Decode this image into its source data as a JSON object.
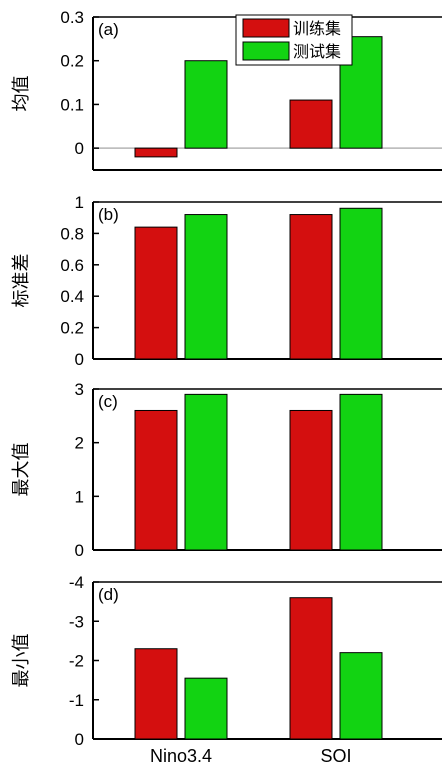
{
  "chart_data": [
    {
      "type": "bar",
      "panel_label": "(a)",
      "ylabel": "均值",
      "categories": [
        "Nino3.4",
        "SOI"
      ],
      "series": [
        {
          "name": "训练集",
          "values": [
            -0.02,
            0.11
          ]
        },
        {
          "name": "测试集",
          "values": [
            0.2,
            0.255
          ]
        }
      ],
      "ylim": [
        -0.05,
        0.3
      ],
      "yticks": [
        0,
        0.1,
        0.2,
        0.3
      ],
      "ytick_labels": [
        "0",
        "0.1",
        "0.2",
        "0.3"
      ],
      "zero_line": true,
      "legend": "top-center"
    },
    {
      "type": "bar",
      "panel_label": "(b)",
      "ylabel": "标准差",
      "categories": [
        "Nino3.4",
        "SOI"
      ],
      "series": [
        {
          "name": "训练集",
          "values": [
            0.84,
            0.92
          ]
        },
        {
          "name": "测试集",
          "values": [
            0.92,
            0.96
          ]
        }
      ],
      "ylim": [
        0,
        1
      ],
      "yticks": [
        0,
        0.2,
        0.4,
        0.6,
        0.8,
        1
      ],
      "ytick_labels": [
        "0",
        "0.2",
        "0.4",
        "0.6",
        "0.8",
        "1"
      ]
    },
    {
      "type": "bar",
      "panel_label": "(c)",
      "ylabel": "最大值",
      "categories": [
        "Nino3.4",
        "SOI"
      ],
      "series": [
        {
          "name": "训练集",
          "values": [
            2.6,
            2.6
          ]
        },
        {
          "name": "测试集",
          "values": [
            2.9,
            2.9
          ]
        }
      ],
      "ylim": [
        0,
        3
      ],
      "yticks": [
        0,
        1,
        2,
        3
      ],
      "ytick_labels": [
        "0",
        "1",
        "2",
        "3"
      ]
    },
    {
      "type": "bar",
      "panel_label": "(d)",
      "ylabel": "最小值",
      "categories": [
        "Nino3.4",
        "SOI"
      ],
      "series": [
        {
          "name": "训练集",
          "values": [
            -2.3,
            -3.6
          ]
        },
        {
          "name": "测试集",
          "values": [
            -1.55,
            -2.2
          ]
        }
      ],
      "ylim": [
        0,
        -4
      ],
      "y_reversed": true,
      "yticks": [
        0,
        -1,
        -2,
        -3,
        -4
      ],
      "ytick_labels": [
        "0",
        "-1",
        "-2",
        "-3",
        "-4"
      ]
    }
  ],
  "x_categories": [
    "Nino3.4",
    "SOI"
  ],
  "legend": {
    "entries": [
      "训练集",
      "测试集"
    ]
  },
  "colors": {
    "train": "#d40f0f",
    "test": "#12d312",
    "zero_line": "#b4b4b4",
    "axis": "#000000"
  }
}
